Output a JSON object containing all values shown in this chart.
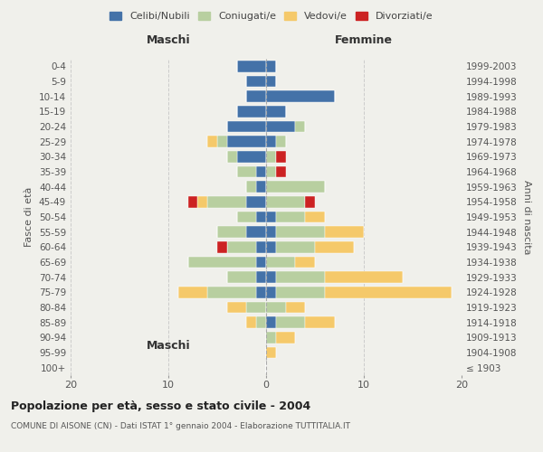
{
  "age_groups": [
    "100+",
    "95-99",
    "90-94",
    "85-89",
    "80-84",
    "75-79",
    "70-74",
    "65-69",
    "60-64",
    "55-59",
    "50-54",
    "45-49",
    "40-44",
    "35-39",
    "30-34",
    "25-29",
    "20-24",
    "15-19",
    "10-14",
    "5-9",
    "0-4"
  ],
  "birth_years": [
    "≤ 1903",
    "1904-1908",
    "1909-1913",
    "1914-1918",
    "1919-1923",
    "1924-1928",
    "1929-1933",
    "1934-1938",
    "1939-1943",
    "1944-1948",
    "1949-1953",
    "1954-1958",
    "1959-1963",
    "1964-1968",
    "1969-1973",
    "1974-1978",
    "1979-1983",
    "1984-1988",
    "1989-1993",
    "1994-1998",
    "1999-2003"
  ],
  "colors": {
    "celibi": "#4472a8",
    "coniugati": "#b8cfa0",
    "vedovi": "#f5c96a",
    "divorziati": "#cc2222"
  },
  "maschi": {
    "celibi": [
      0,
      0,
      0,
      0,
      0,
      1,
      1,
      1,
      1,
      2,
      1,
      2,
      1,
      1,
      3,
      4,
      4,
      3,
      2,
      2,
      3
    ],
    "coniugati": [
      0,
      0,
      0,
      1,
      2,
      5,
      3,
      7,
      3,
      3,
      2,
      4,
      1,
      2,
      1,
      1,
      0,
      0,
      0,
      0,
      0
    ],
    "vedovi": [
      0,
      0,
      0,
      1,
      2,
      3,
      0,
      0,
      0,
      0,
      0,
      1,
      0,
      0,
      0,
      1,
      0,
      0,
      0,
      0,
      0
    ],
    "divorziati": [
      0,
      0,
      0,
      0,
      0,
      0,
      0,
      0,
      1,
      0,
      0,
      1,
      0,
      0,
      0,
      0,
      0,
      0,
      0,
      0,
      0
    ]
  },
  "femmine": {
    "celibi": [
      0,
      0,
      0,
      1,
      0,
      1,
      1,
      0,
      1,
      1,
      1,
      0,
      0,
      0,
      0,
      1,
      3,
      2,
      7,
      1,
      1
    ],
    "coniugati": [
      0,
      0,
      1,
      3,
      2,
      5,
      5,
      3,
      4,
      5,
      3,
      4,
      6,
      1,
      1,
      1,
      1,
      0,
      0,
      0,
      0
    ],
    "vedovi": [
      0,
      1,
      2,
      3,
      2,
      13,
      8,
      2,
      4,
      4,
      2,
      0,
      0,
      0,
      0,
      0,
      0,
      0,
      0,
      0,
      0
    ],
    "divorziati": [
      0,
      0,
      0,
      0,
      0,
      0,
      0,
      0,
      0,
      0,
      0,
      1,
      0,
      1,
      1,
      0,
      0,
      0,
      0,
      0,
      0
    ]
  },
  "title": "Popolazione per età, sesso e stato civile - 2004",
  "subtitle": "COMUNE DI AISONE (CN) - Dati ISTAT 1° gennaio 2004 - Elaborazione TUTTITALIA.IT",
  "xlabel_left": "Maschi",
  "xlabel_right": "Femmine",
  "ylabel_left": "Fasce di età",
  "ylabel_right": "Anni di nascita",
  "xlim": 20,
  "legend_labels": [
    "Celibi/Nubili",
    "Coniugati/e",
    "Vedovi/e",
    "Divorziati/e"
  ],
  "bg_color": "#f0f0eb"
}
